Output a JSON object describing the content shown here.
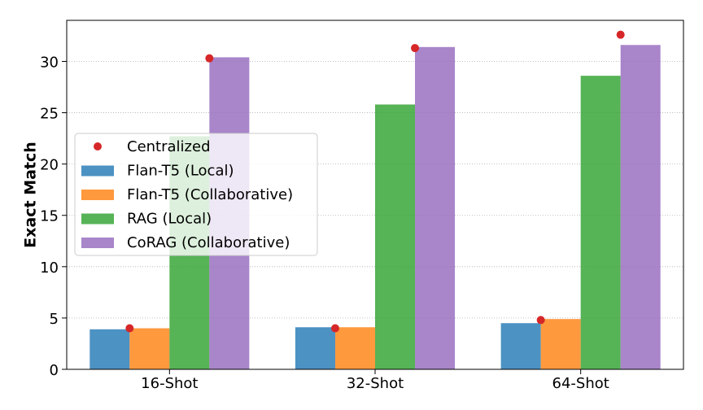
{
  "chart_data": {
    "type": "bar",
    "title": "",
    "xlabel": "",
    "ylabel": "Exact Match",
    "ylim": [
      0,
      34
    ],
    "yticks": [
      0,
      5,
      10,
      15,
      20,
      25,
      30
    ],
    "grid": "horizontal dotted",
    "legend_position": "center-left",
    "categories": [
      "16-Shot",
      "32-Shot",
      "64-Shot"
    ],
    "series": [
      {
        "name": "Flan-T5 (Local)",
        "color": "#1f77b4",
        "values": [
          3.9,
          4.1,
          4.5
        ]
      },
      {
        "name": "Flan-T5 (Collaborative)",
        "color": "#ff7f0e",
        "values": [
          4.0,
          4.1,
          4.9
        ]
      },
      {
        "name": "RAG (Local)",
        "color": "#2ca02c",
        "values": [
          22.7,
          25.8,
          28.6
        ]
      },
      {
        "name": "CoRAG (Collaborative)",
        "color": "#9467bd",
        "values": [
          30.4,
          31.4,
          31.6
        ]
      }
    ],
    "centralized": {
      "name": "Centralized",
      "color": "#d62728",
      "points": [
        {
          "category": "16-Shot",
          "series": "Flan-T5 (Collaborative)",
          "value": 4.0
        },
        {
          "category": "16-Shot",
          "series": "CoRAG (Collaborative)",
          "value": 30.3
        },
        {
          "category": "32-Shot",
          "series": "Flan-T5 (Collaborative)",
          "value": 4.0
        },
        {
          "category": "32-Shot",
          "series": "CoRAG (Collaborative)",
          "value": 31.3
        },
        {
          "category": "64-Shot",
          "series": "Flan-T5 (Collaborative)",
          "value": 4.8
        },
        {
          "category": "64-Shot",
          "series": "CoRAG (Collaborative)",
          "value": 32.6
        }
      ]
    }
  }
}
